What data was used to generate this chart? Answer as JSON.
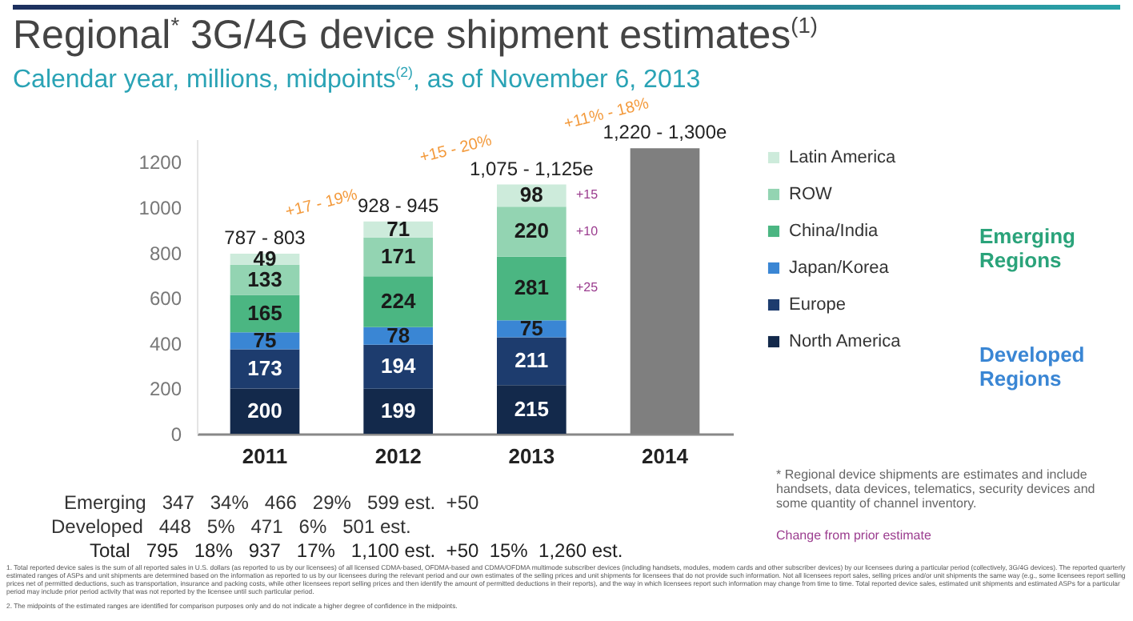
{
  "chart_data": {
    "type": "bar",
    "title": "Regional$^{*}$ 3G/4G device shipment estimates$^{(1)}$",
    "subtitle": "Calendar year, millions, midpoints$^{(2)}$, as of November 6, 2013",
    "categories": [
      "2011",
      "2012",
      "2013",
      "2014"
    ],
    "stacked": true,
    "series": [
      {
        "name": "North America",
        "color": "#13294b",
        "values": [
          200,
          199,
          215,
          null
        ],
        "value_labels": [
          "200",
          "199",
          "215",
          null
        ]
      },
      {
        "name": "Europe",
        "color": "#1d3c6e",
        "values": [
          173,
          194,
          211,
          null
        ],
        "value_labels": [
          "173",
          "194",
          "211",
          null
        ]
      },
      {
        "name": "Japan/Korea",
        "color": "#3a86d4",
        "values": [
          75,
          78,
          75,
          null
        ],
        "value_labels": [
          "75",
          "78",
          "75",
          null
        ]
      },
      {
        "name": "China/India",
        "color": "#4bb682",
        "values": [
          165,
          224,
          281,
          null
        ],
        "value_labels": [
          "165",
          "224",
          "281",
          null
        ]
      },
      {
        "name": "ROW",
        "color": "#93d4b2",
        "values": [
          133,
          171,
          220,
          null
        ],
        "value_labels": [
          "133",
          "171",
          "220",
          null
        ]
      },
      {
        "name": "Latin America",
        "color": "#cdebdb",
        "values": [
          49,
          71,
          98,
          null
        ],
        "value_labels": [
          "49",
          "71",
          "98",
          null
        ]
      },
      {
        "color": "#7f7f7f",
        "values": [
          null,
          null,
          null,
          1260
        ]
      }
    ],
    "ylim": [
      0,
      1300
    ],
    "yticks": [
      0,
      200,
      400,
      600,
      800,
      1000,
      1200
    ],
    "grid": false,
    "legend": "right",
    "annotations": [
      {
        "text": "787 - 803",
        "x": "2011",
        "y": 795
      },
      {
        "text": "928 - 945",
        "x": "2012",
        "y": 937
      },
      {
        "text": "1,075 - 1,125e",
        "x": "2013",
        "y": 1100
      },
      {
        "text": "1,220 - 1,300e",
        "x": "2014",
        "y": 1260
      },
      "+17 - 19%",
      "+15 - 20%",
      "+11% - 18%",
      "+15",
      "+10",
      "+25",
      "Emerging Regions",
      "Developed Regions",
      "Emerging   347   34%   466   29%   599 est.  +50",
      "Developed   448   5%   471   6%   501 est.",
      "Total   795   18%   937   17%   1,100 est.  +50  15%  1,260 est.",
      "* Regional device shipments are estimates and include handsets, data devices, telematics, security devices and some quantity of channel inventory.",
      "Change from prior estimate",
      "1. Total reported device sales is the sum of all reported sales in U.S. dollars (as reported to us by our licensees) of all licensed CDMA-based, OFDMA-based and CDMA/OFDMA multimode subscriber devices (including handsets, modules, modem cards and other subscriber devices) by our licensees during a particular period (collectively, 3G/4G devices). The reported quarterly estimated ranges of ASPs and unit shipments are determined based on the information as reported to us by our licensees during the relevant period and our own estimates of the selling prices and unit shipments for licensees that do not provide such information. Not all licensees report sales, selling prices and/or unit shipments the same way (e.g., some licensees report selling prices net of permitted deductions, such as transportation, insurance and packing costs, while other licensees report selling prices and then identify the amount of permitted deductions in their reports), and the way in which licensees report such information may change from time to time. Total reported device sales, estimated unit shipments and estimated ASPs for a particular period may include prior period activity that was not reported by the licensee until such particular period.",
      "2. The midpoints of the estimated ranges are identified for comparison purposes only and do not indicate a higher degree of confidence in the midpoints."
    ]
  }
}
